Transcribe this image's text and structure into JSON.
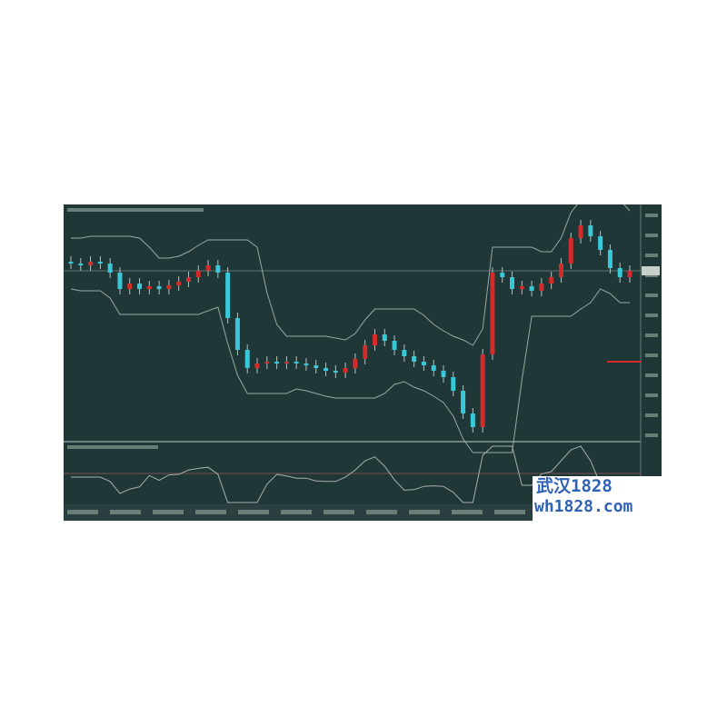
{
  "chart_data": {
    "type": "candlestick",
    "title": "",
    "xlabel": "",
    "ylabel": "",
    "close": [
      195,
      193,
      197,
      195,
      185,
      167,
      173,
      167,
      170,
      167,
      171,
      175,
      180,
      187,
      193,
      185,
      135,
      100,
      80,
      85,
      87,
      85,
      87,
      85,
      83,
      80,
      77,
      75,
      80,
      90,
      105,
      117,
      110,
      100,
      93,
      87,
      83,
      77,
      70,
      55,
      30,
      15,
      95,
      185,
      180,
      167,
      170,
      165,
      173,
      180,
      195,
      223,
      237,
      225,
      210,
      190,
      180,
      187
    ],
    "up_color": "#d42a2a",
    "down_color": "#38c8d8",
    "band_color": "#9aa8a0",
    "background": "#1f3737",
    "grid": false,
    "indicator_panel": true
  },
  "watermark": {
    "line1": "武汉1828",
    "line2": "wh1828.com",
    "color": "#2f62b5"
  }
}
